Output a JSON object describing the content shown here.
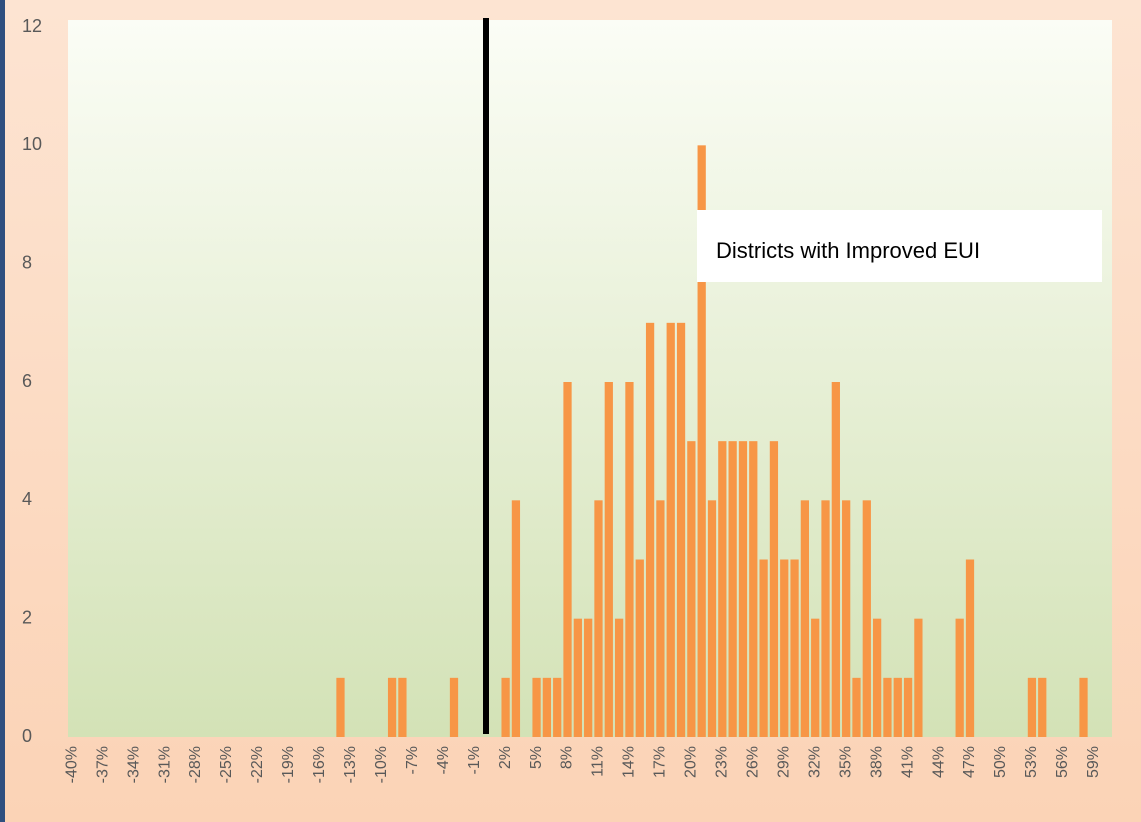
{
  "chart_data": {
    "type": "bar",
    "annotations": [
      "Districts with Improved EUI"
    ],
    "categories": [
      "-40%",
      null,
      null,
      "-37%",
      null,
      null,
      "-34%",
      null,
      null,
      "-31%",
      null,
      null,
      "-28%",
      null,
      null,
      "-25%",
      null,
      null,
      "-22%",
      null,
      null,
      "-19%",
      null,
      null,
      "-16%",
      null,
      null,
      "-13%",
      null,
      null,
      "-10%",
      null,
      null,
      "-7%",
      null,
      null,
      "-4%",
      null,
      null,
      "-1%",
      null,
      null,
      "2%",
      null,
      null,
      "5%",
      null,
      null,
      "8%",
      null,
      null,
      "11%",
      null,
      null,
      "14%",
      null,
      null,
      "17%",
      null,
      null,
      "20%",
      null,
      null,
      "23%",
      null,
      null,
      "26%",
      null,
      null,
      "29%",
      null,
      null,
      "32%",
      null,
      null,
      "35%",
      null,
      null,
      "38%",
      null,
      null,
      "41%",
      null,
      null,
      "44%",
      null,
      null,
      "47%",
      null,
      null,
      "50%",
      null,
      null,
      "53%",
      null,
      null,
      "56%",
      null,
      null,
      "59%"
    ],
    "values": [
      0,
      0,
      0,
      0,
      0,
      0,
      0,
      0,
      0,
      0,
      0,
      0,
      0,
      0,
      0,
      0,
      0,
      0,
      0,
      0,
      0,
      0,
      0,
      0,
      0,
      0,
      1,
      0,
      0,
      0,
      0,
      1,
      1,
      0,
      0,
      0,
      0,
      1,
      0,
      0,
      0,
      0,
      1,
      4,
      0,
      1,
      1,
      1,
      6,
      2,
      2,
      4,
      6,
      2,
      6,
      3,
      7,
      4,
      7,
      7,
      5,
      10,
      4,
      5,
      5,
      5,
      5,
      3,
      5,
      3,
      3,
      4,
      2,
      4,
      6,
      4,
      1,
      4,
      2,
      1,
      1,
      1,
      2,
      0,
      0,
      0,
      2,
      3,
      0,
      0,
      0,
      0,
      0,
      1,
      1,
      0,
      0,
      0,
      1,
      0
    ],
    "color": "#f79646",
    "ylim": [
      0,
      12
    ],
    "yticks": [
      0,
      2,
      4,
      6,
      8,
      10,
      12
    ],
    "grid": false
  }
}
